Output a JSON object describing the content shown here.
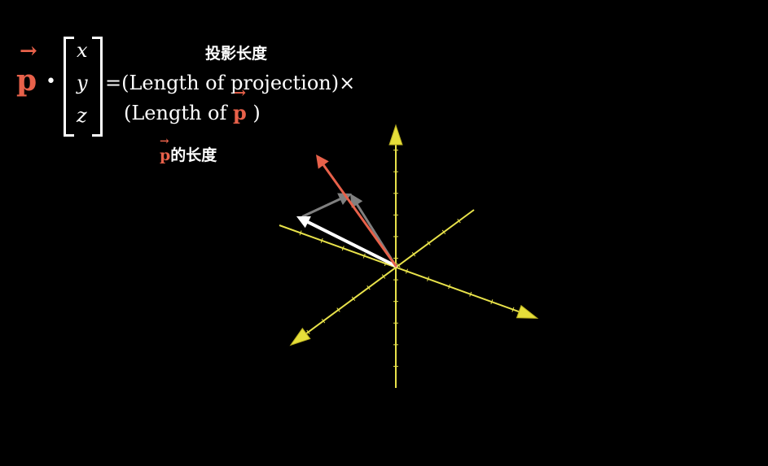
{
  "formula": {
    "vector_symbol": "p",
    "vector_arrow": "→",
    "dot": "•",
    "matrix_entries": [
      "x",
      "y",
      "z"
    ],
    "equals_line": "=(Length of projection)×",
    "second_line_prefix": "(Length of ",
    "second_line_suffix": " )"
  },
  "annotations": {
    "projection_length": "投影长度",
    "p_length_suffix": "的长度"
  },
  "colors": {
    "background": "#000000",
    "axis": "#e8e24a",
    "vector_p": "#e8614a",
    "vector_white": "#ffffff",
    "vector_gray": "#808080",
    "text": "#ffffff"
  }
}
